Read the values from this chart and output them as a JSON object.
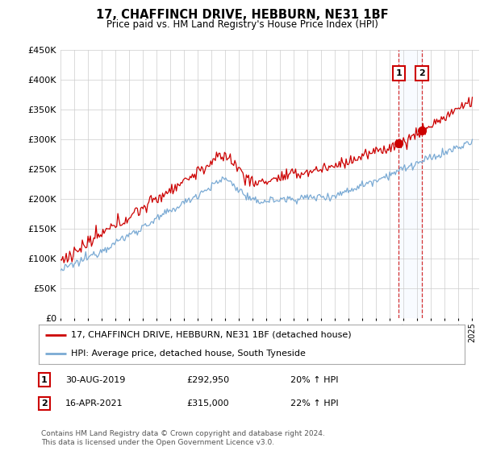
{
  "title": "17, CHAFFINCH DRIVE, HEBBURN, NE31 1BF",
  "subtitle": "Price paid vs. HM Land Registry's House Price Index (HPI)",
  "ylim": [
    0,
    450000
  ],
  "yticks": [
    0,
    50000,
    100000,
    150000,
    200000,
    250000,
    300000,
    350000,
    400000,
    450000
  ],
  "ytick_labels": [
    "£0",
    "£50K",
    "£100K",
    "£150K",
    "£200K",
    "£250K",
    "£300K",
    "£350K",
    "£400K",
    "£450K"
  ],
  "house_color": "#cc0000",
  "hpi_color": "#7aaad4",
  "marker1_date": "30-AUG-2019",
  "marker1_price": "£292,950",
  "marker1_hpi": "20% ↑ HPI",
  "marker1_value": 292950,
  "marker2_date": "16-APR-2021",
  "marker2_price": "£315,000",
  "marker2_hpi": "22% ↑ HPI",
  "marker2_value": 315000,
  "legend_house": "17, CHAFFINCH DRIVE, HEBBURN, NE31 1BF (detached house)",
  "legend_hpi": "HPI: Average price, detached house, South Tyneside",
  "footnote": "Contains HM Land Registry data © Crown copyright and database right 2024.\nThis data is licensed under the Open Government Licence v3.0.",
  "background_color": "#ffffff",
  "grid_color": "#cccccc",
  "shade_color": "#ddeeff",
  "vline_color": "#cc0000"
}
